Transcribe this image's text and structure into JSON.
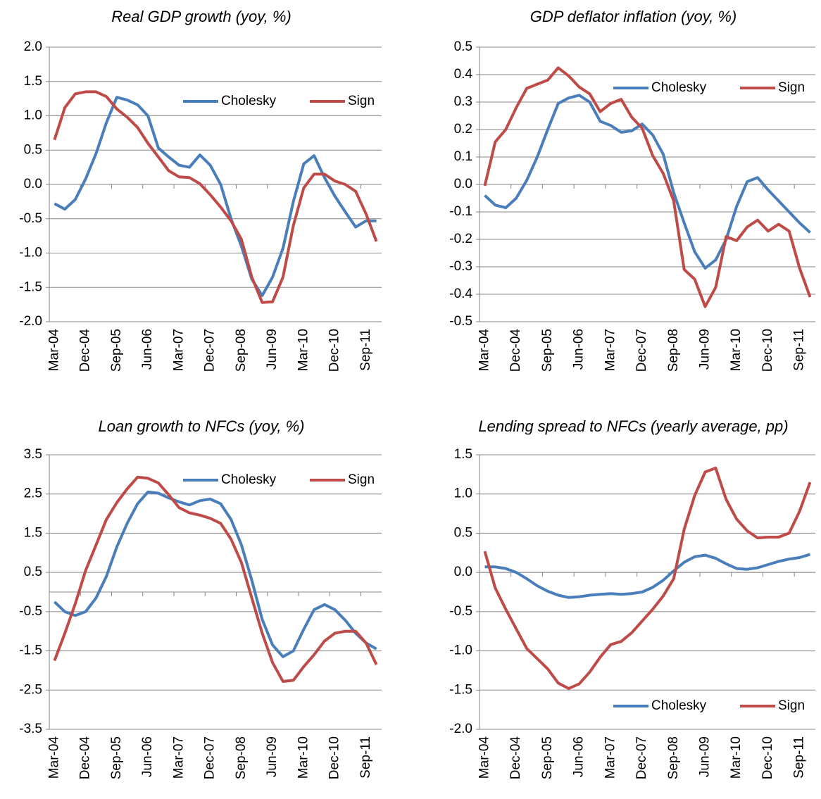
{
  "chart_data": [
    {
      "type": "line",
      "title": "Real GDP growth (yoy, %)",
      "categories": [
        "Mar-04",
        null,
        null,
        "Dec-04",
        null,
        null,
        "Sep-05",
        null,
        null,
        "Jun-06",
        null,
        null,
        "Mar-07",
        null,
        null,
        "Dec-07",
        null,
        null,
        "Sep-08",
        null,
        null,
        "Jun-09",
        null,
        null,
        "Mar-10",
        null,
        null,
        "Dec-10",
        null,
        null,
        "Sep-11",
        null
      ],
      "series": [
        {
          "name": "Cholesky",
          "color": "#4a7ebb",
          "values": [
            -0.28,
            -0.36,
            -0.22,
            0.08,
            0.45,
            0.9,
            1.27,
            1.23,
            1.16,
            1.0,
            0.53,
            0.4,
            0.28,
            0.25,
            0.43,
            0.28,
            0.0,
            -0.5,
            -0.9,
            -1.38,
            -1.62,
            -1.35,
            -0.93,
            -0.25,
            0.3,
            0.42,
            0.1,
            -0.17,
            -0.4,
            -0.62,
            -0.53,
            -0.53
          ]
        },
        {
          "name": "Sign",
          "color": "#be4b48",
          "values": [
            0.65,
            1.12,
            1.32,
            1.35,
            1.35,
            1.28,
            1.1,
            0.98,
            0.83,
            0.6,
            0.4,
            0.2,
            0.11,
            0.1,
            0.01,
            -0.15,
            -0.33,
            -0.53,
            -0.8,
            -1.35,
            -1.72,
            -1.71,
            -1.35,
            -0.6,
            -0.05,
            0.15,
            0.15,
            0.05,
            0.0,
            -0.1,
            -0.43,
            -0.83
          ]
        }
      ],
      "ylim": [
        -2,
        2
      ],
      "yticks": [
        {
          "value": 2,
          "label": "2.0"
        },
        1.5,
        {
          "value": 1,
          "label": "1.0"
        },
        0.5,
        {
          "value": 0,
          "label": "0.0"
        },
        -0.5,
        {
          "value": -1,
          "label": "-1.0"
        },
        -1.5,
        {
          "value": -2,
          "label": "-2.0"
        }
      ],
      "grid": true,
      "legend": "upper right"
    },
    {
      "type": "line",
      "title": "GDP deflator inflation (yoy, %)",
      "categories": [
        "Mar-04",
        null,
        null,
        "Dec-04",
        null,
        null,
        "Sep-05",
        null,
        null,
        "Jun-06",
        null,
        null,
        "Mar-07",
        null,
        null,
        "Dec-07",
        null,
        null,
        "Sep-08",
        null,
        null,
        "Jun-09",
        null,
        null,
        "Mar-10",
        null,
        null,
        "Dec-10",
        null,
        null,
        "Sep-11",
        null
      ],
      "series": [
        {
          "name": "Cholesky",
          "color": "#4a7ebb",
          "values": [
            -0.04,
            -0.075,
            -0.085,
            -0.05,
            0.015,
            0.1,
            0.2,
            0.295,
            0.315,
            0.325,
            0.3,
            0.23,
            0.215,
            0.19,
            0.195,
            0.22,
            0.18,
            0.11,
            -0.03,
            -0.14,
            -0.245,
            -0.305,
            -0.275,
            -0.2,
            -0.08,
            0.01,
            0.025,
            -0.02,
            -0.06,
            -0.1,
            -0.14,
            -0.175
          ]
        },
        {
          "name": "Sign",
          "color": "#be4b48",
          "values": [
            -0.005,
            0.155,
            0.2,
            0.28,
            0.35,
            0.365,
            0.38,
            0.425,
            0.395,
            0.355,
            0.33,
            0.265,
            0.295,
            0.31,
            0.245,
            0.205,
            0.105,
            0.04,
            -0.06,
            -0.31,
            -0.345,
            -0.445,
            -0.375,
            -0.19,
            -0.205,
            -0.155,
            -0.13,
            -0.17,
            -0.145,
            -0.17,
            -0.305,
            -0.41
          ]
        }
      ],
      "ylim": [
        -0.5,
        0.5
      ],
      "yticks": [
        0.5,
        0.4,
        0.3,
        0.2,
        0.1,
        {
          "value": 0,
          "label": "0.0"
        },
        -0.1,
        -0.2,
        -0.3,
        -0.4,
        -0.5
      ],
      "grid": true,
      "legend": "upper right"
    },
    {
      "type": "line",
      "title": "Loan growth to NFCs (yoy, %)",
      "categories": [
        "Mar-04",
        null,
        null,
        "Dec-04",
        null,
        null,
        "Sep-05",
        null,
        null,
        "Jun-06",
        null,
        null,
        "Mar-07",
        null,
        null,
        "Dec-07",
        null,
        null,
        "Sep-08",
        null,
        null,
        "Jun-09",
        null,
        null,
        "Mar-10",
        null,
        null,
        "Dec-10",
        null,
        null,
        "Sep-11",
        null
      ],
      "series": [
        {
          "name": "Cholesky",
          "color": "#4a7ebb",
          "values": [
            -0.25,
            -0.5,
            -0.6,
            -0.5,
            -0.15,
            0.4,
            1.15,
            1.75,
            2.25,
            2.55,
            2.52,
            2.4,
            2.3,
            2.22,
            2.33,
            2.37,
            2.25,
            1.85,
            1.2,
            0.3,
            -0.7,
            -1.35,
            -1.65,
            -1.5,
            -0.95,
            -0.45,
            -0.32,
            -0.45,
            -0.72,
            -1.05,
            -1.3,
            -1.45
          ]
        },
        {
          "name": "Sign",
          "color": "#be4b48",
          "values": [
            -1.75,
            -1.05,
            -0.3,
            0.55,
            1.2,
            1.85,
            2.28,
            2.63,
            2.93,
            2.9,
            2.78,
            2.48,
            2.15,
            2.02,
            1.96,
            1.88,
            1.75,
            1.35,
            0.75,
            -0.15,
            -1.05,
            -1.8,
            -2.28,
            -2.25,
            -1.9,
            -1.6,
            -1.25,
            -1.05,
            -1.0,
            -1.0,
            -1.3,
            -1.85
          ]
        }
      ],
      "ylim": [
        -3.5,
        3.5
      ],
      "yticks": [
        3.5,
        2.5,
        1.5,
        0.5,
        -0.5,
        -1.5,
        -2.5,
        -3.5
      ],
      "grid": true,
      "legend": "upper right"
    },
    {
      "type": "line",
      "title": "Lending spread to NFCs (yearly average, pp)",
      "categories": [
        "Mar-04",
        null,
        null,
        "Dec-04",
        null,
        null,
        "Sep-05",
        null,
        null,
        "Jun-06",
        null,
        null,
        "Mar-07",
        null,
        null,
        "Dec-07",
        null,
        null,
        "Sep-08",
        null,
        null,
        "Jun-09",
        null,
        null,
        "Mar-10",
        null,
        null,
        "Dec-10",
        null,
        null,
        "Sep-11",
        null
      ],
      "series": [
        {
          "name": "Cholesky",
          "color": "#4a7ebb",
          "values": [
            0.07,
            0.07,
            0.05,
            0.0,
            -0.08,
            -0.17,
            -0.24,
            -0.29,
            -0.32,
            -0.31,
            -0.29,
            -0.28,
            -0.27,
            -0.28,
            -0.27,
            -0.25,
            -0.19,
            -0.1,
            0.02,
            0.13,
            0.2,
            0.22,
            0.18,
            0.11,
            0.05,
            0.04,
            0.06,
            0.1,
            0.14,
            0.17,
            0.19,
            0.23
          ]
        },
        {
          "name": "Sign",
          "color": "#be4b48",
          "values": [
            0.27,
            -0.2,
            -0.47,
            -0.72,
            -0.97,
            -1.1,
            -1.23,
            -1.41,
            -1.48,
            -1.42,
            -1.27,
            -1.08,
            -0.92,
            -0.88,
            -0.77,
            -0.62,
            -0.47,
            -0.3,
            -0.08,
            0.55,
            0.98,
            1.28,
            1.33,
            0.93,
            0.68,
            0.53,
            0.44,
            0.45,
            0.45,
            0.5,
            0.78,
            1.15
          ]
        }
      ],
      "ylim": [
        -2,
        1.5
      ],
      "yticks": [
        1.5,
        {
          "value": 1,
          "label": "1.0"
        },
        0.5,
        {
          "value": 0,
          "label": "0.0"
        },
        -0.5,
        {
          "value": -1,
          "label": "-1.0"
        },
        -1.5,
        {
          "value": -2,
          "label": "-2.0"
        }
      ],
      "grid": true,
      "legend": "lower right"
    }
  ]
}
